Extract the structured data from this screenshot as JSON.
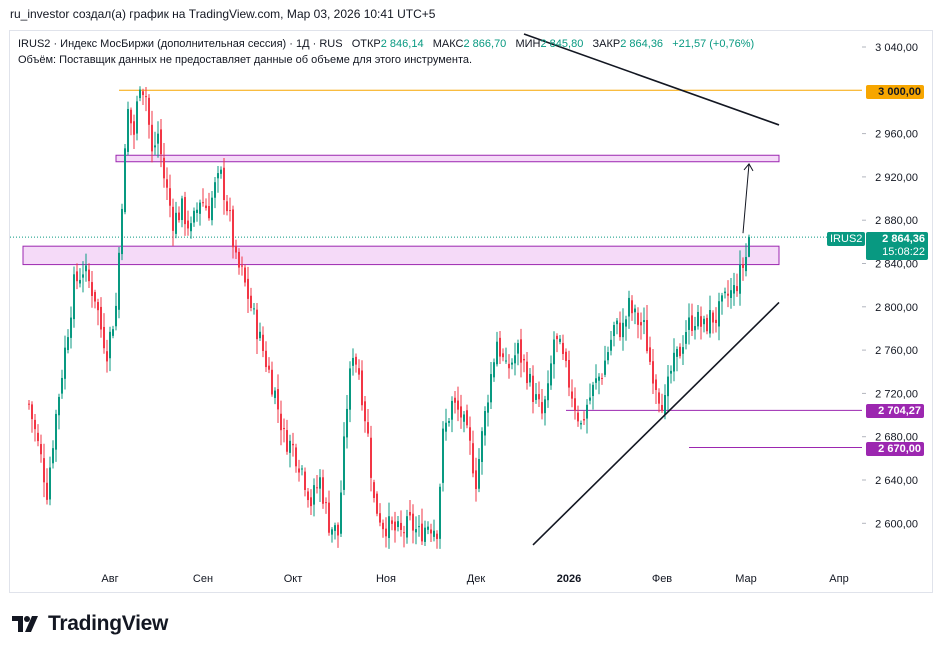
{
  "header": {
    "attribution": "ru_investor создал(а) график на TradingView.com, Мар 03, 2026 10:41 UTC+5"
  },
  "legend": {
    "symbol_line": "IRUS2 · Индекс МосБиржи (дополнительная сессия) · 1Д · RUS",
    "open_label": "ОТКР",
    "open_value": "2 846,14",
    "high_label": "МАКС",
    "high_value": "2 866,70",
    "low_label": "МИН",
    "low_value": "2 845,80",
    "close_label": "ЗАКР",
    "close_value": "2 864,36",
    "change": "+21,57 (+0,76%)",
    "volume_note": "Объём: Поставщик данных не предоставляет данные об объеме для этого инструмента."
  },
  "price_tag": {
    "symbol": "IRUS2",
    "price": "2 864,36",
    "countdown": "15:08:22"
  },
  "level_tags": {
    "level_3000": "3 000,00",
    "level_2704": "2 704,27",
    "level_2670": "2 670,00"
  },
  "branding": {
    "logo_text": "TradingView"
  },
  "colors": {
    "up": "#089981",
    "down": "#f23645",
    "orange": "#f7a600",
    "purple": "#9c27b0",
    "zone_fill": "#f3d4f7",
    "zone_border": "#9c27b0",
    "text": "#131722",
    "muted": "#787b86"
  },
  "chart_data": {
    "type": "candlestick",
    "title": "IRUS2 · Индекс МосБиржи (дополнительная сессия) · 1Д · RUS",
    "ylim": [
      2580,
      3050
    ],
    "y_ticks": [
      {
        "value": 3040,
        "label": "3 040,00"
      },
      {
        "value": 2960,
        "label": "2 960,00"
      },
      {
        "value": 2920,
        "label": "2 920,00"
      },
      {
        "value": 2880,
        "label": "2 880,00"
      },
      {
        "value": 2840,
        "label": "2 840,00"
      },
      {
        "value": 2800,
        "label": "2 800,00"
      },
      {
        "value": 2760,
        "label": "2 760,00"
      },
      {
        "value": 2720,
        "label": "2 720,00"
      },
      {
        "value": 2680,
        "label": "2 680,00"
      },
      {
        "value": 2640,
        "label": "2 640,00"
      },
      {
        "value": 2600,
        "label": "2 600,00"
      }
    ],
    "x_ticks": [
      {
        "day": 45,
        "label": "Авг",
        "bold": false
      },
      {
        "day": 76,
        "label": "Сен",
        "bold": false
      },
      {
        "day": 106,
        "label": "Окт",
        "bold": false
      },
      {
        "day": 137,
        "label": "Ноя",
        "bold": false
      },
      {
        "day": 167,
        "label": "Дек",
        "bold": false
      },
      {
        "day": 198,
        "label": "2026",
        "bold": true
      },
      {
        "day": 229,
        "label": "Фев",
        "bold": false
      },
      {
        "day": 257,
        "label": "Мар",
        "bold": false
      },
      {
        "day": 288,
        "label": "Апр",
        "bold": false
      }
    ],
    "x_range": [
      16,
      310
    ],
    "close_path": [
      [
        18,
        2710
      ],
      [
        22,
        2660
      ],
      [
        24,
        2630
      ],
      [
        27,
        2700
      ],
      [
        30,
        2760
      ],
      [
        33,
        2820
      ],
      [
        36,
        2835
      ],
      [
        40,
        2810
      ],
      [
        42,
        2780
      ],
      [
        44,
        2760
      ],
      [
        47,
        2800
      ],
      [
        49,
        2900
      ],
      [
        51,
        2980
      ],
      [
        53,
        2960
      ],
      [
        55,
        3010
      ],
      [
        57,
        2995
      ],
      [
        59,
        2940
      ],
      [
        61,
        2960
      ],
      [
        63,
        2920
      ],
      [
        66,
        2880
      ],
      [
        69,
        2890
      ],
      [
        72,
        2870
      ],
      [
        75,
        2900
      ],
      [
        78,
        2890
      ],
      [
        80,
        2910
      ],
      [
        82,
        2920
      ],
      [
        85,
        2880
      ],
      [
        87,
        2840
      ],
      [
        89,
        2830
      ],
      [
        91,
        2810
      ],
      [
        94,
        2780
      ],
      [
        97,
        2750
      ],
      [
        100,
        2720
      ],
      [
        103,
        2680
      ],
      [
        106,
        2670
      ],
      [
        109,
        2650
      ],
      [
        112,
        2620
      ],
      [
        115,
        2640
      ],
      [
        118,
        2600
      ],
      [
        121,
        2590
      ],
      [
        124,
        2710
      ],
      [
        126,
        2760
      ],
      [
        128,
        2740
      ],
      [
        131,
        2680
      ],
      [
        133,
        2620
      ],
      [
        136,
        2600
      ],
      [
        139,
        2595
      ],
      [
        142,
        2590
      ],
      [
        145,
        2600
      ],
      [
        148,
        2590
      ],
      [
        151,
        2600
      ],
      [
        154,
        2595
      ],
      [
        156,
        2680
      ],
      [
        159,
        2710
      ],
      [
        162,
        2700
      ],
      [
        165,
        2670
      ],
      [
        167,
        2640
      ],
      [
        169,
        2680
      ],
      [
        171,
        2720
      ],
      [
        174,
        2770
      ],
      [
        177,
        2740
      ],
      [
        179,
        2750
      ],
      [
        181,
        2760
      ],
      [
        184,
        2740
      ],
      [
        186,
        2720
      ],
      [
        189,
        2700
      ],
      [
        191,
        2720
      ],
      [
        193,
        2770
      ],
      [
        195,
        2760
      ],
      [
        197,
        2740
      ],
      [
        200,
        2710
      ],
      [
        202,
        2690
      ],
      [
        204,
        2710
      ],
      [
        207,
        2730
      ],
      [
        209,
        2740
      ],
      [
        211,
        2760
      ],
      [
        213,
        2780
      ],
      [
        216,
        2780
      ],
      [
        218,
        2800
      ],
      [
        220,
        2790
      ],
      [
        223,
        2780
      ],
      [
        225,
        2750
      ],
      [
        228,
        2720
      ],
      [
        230,
        2710
      ],
      [
        232,
        2740
      ],
      [
        235,
        2760
      ],
      [
        237,
        2780
      ],
      [
        240,
        2790
      ],
      [
        243,
        2780
      ],
      [
        245,
        2790
      ],
      [
        247,
        2790
      ],
      [
        249,
        2800
      ],
      [
        251,
        2810
      ],
      [
        253,
        2815
      ],
      [
        255,
        2830
      ],
      [
        257,
        2846
      ],
      [
        258,
        2864
      ]
    ],
    "last": {
      "open": 2846.14,
      "high": 2866.7,
      "low": 2845.8,
      "close": 2864.36,
      "change": 21.57,
      "change_pct": 0.76
    },
    "horizontal_levels": [
      {
        "value": 3000,
        "start_day": 48,
        "color": "#f7a600"
      },
      {
        "value": 2704.27,
        "start_day": 197,
        "color": "#9c27b0"
      },
      {
        "value": 2670,
        "start_day": 238,
        "color": "#9c27b0"
      }
    ],
    "zones": [
      {
        "top": 2940,
        "bottom": 2934,
        "start_day": 47,
        "end_day": 268
      },
      {
        "top": 2856,
        "bottom": 2839,
        "start_day": 16,
        "end_day": 268
      }
    ],
    "trendlines": [
      {
        "from": [
          183,
          3052
        ],
        "to": [
          268,
          2968
        ],
        "color": "#131722"
      },
      {
        "from": [
          186,
          2580
        ],
        "to": [
          268,
          2804
        ],
        "color": "#131722"
      }
    ],
    "projection_arrow": {
      "from": [
        256,
        2868
      ],
      "to": [
        258,
        2932
      ]
    },
    "current_price_line": 2864.36
  }
}
